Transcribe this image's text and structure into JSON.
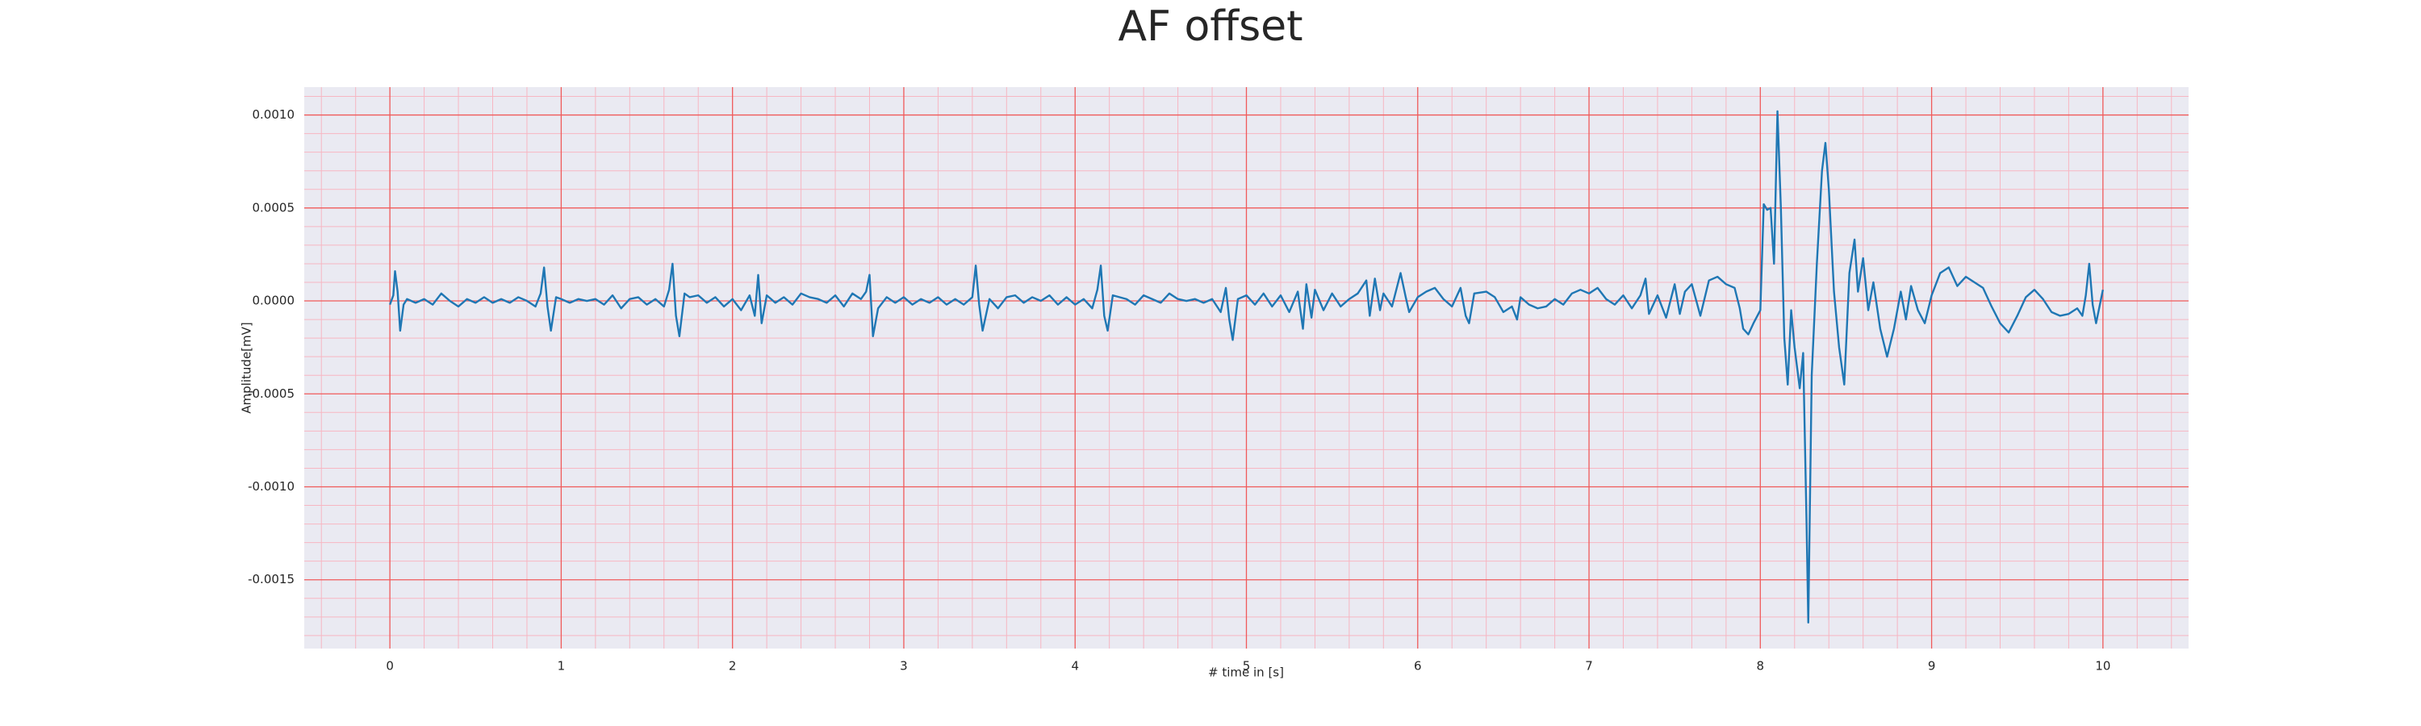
{
  "chart_data": {
    "type": "line",
    "title": "AF offset",
    "x_label": "# time in [s]",
    "y_label": "Amplitude[mV]",
    "color": "#1f77b4",
    "grid": true,
    "minor_grid": true,
    "xlim": [
      -0.5,
      10.5
    ],
    "ylim": [
      -0.00187,
      0.00115
    ],
    "xticks": [
      0,
      1,
      2,
      3,
      4,
      5,
      6,
      7,
      8,
      9,
      10
    ],
    "yticks": [
      {
        "value": -0.0015,
        "label": "-0.0015"
      },
      {
        "value": -0.001,
        "label": "-0.0010"
      },
      {
        "value": -0.0005,
        "label": "-0.0005"
      },
      {
        "value": 0,
        "label": "0.0000"
      },
      {
        "value": 0.0005,
        "label": "0.0005"
      },
      {
        "value": 0.001,
        "label": "0.0010"
      }
    ],
    "x": [
      0,
      0.02,
      0.03,
      0.045,
      0.06,
      0.08,
      0.1,
      0.15,
      0.2,
      0.25,
      0.3,
      0.35,
      0.4,
      0.45,
      0.5,
      0.55,
      0.6,
      0.65,
      0.7,
      0.75,
      0.8,
      0.85,
      0.88,
      0.9,
      0.92,
      0.94,
      0.97,
      1.0,
      1.05,
      1.1,
      1.15,
      1.2,
      1.25,
      1.3,
      1.35,
      1.4,
      1.45,
      1.5,
      1.55,
      1.6,
      1.63,
      1.65,
      1.67,
      1.69,
      1.72,
      1.75,
      1.8,
      1.85,
      1.9,
      1.95,
      2.0,
      2.05,
      2.1,
      2.13,
      2.15,
      2.17,
      2.2,
      2.25,
      2.3,
      2.35,
      2.4,
      2.45,
      2.5,
      2.55,
      2.6,
      2.65,
      2.7,
      2.75,
      2.78,
      2.8,
      2.82,
      2.85,
      2.9,
      2.95,
      3.0,
      3.05,
      3.1,
      3.15,
      3.2,
      3.25,
      3.3,
      3.35,
      3.4,
      3.42,
      3.44,
      3.46,
      3.5,
      3.55,
      3.6,
      3.65,
      3.7,
      3.75,
      3.8,
      3.85,
      3.9,
      3.95,
      4.0,
      4.05,
      4.1,
      4.13,
      4.15,
      4.17,
      4.19,
      4.22,
      4.3,
      4.35,
      4.4,
      4.45,
      4.5,
      4.55,
      4.6,
      4.65,
      4.7,
      4.75,
      4.8,
      4.85,
      4.88,
      4.9,
      4.92,
      4.95,
      5.0,
      5.05,
      5.1,
      5.15,
      5.2,
      5.25,
      5.3,
      5.33,
      5.35,
      5.38,
      5.4,
      5.45,
      5.5,
      5.55,
      5.6,
      5.65,
      5.7,
      5.72,
      5.75,
      5.78,
      5.8,
      5.85,
      5.9,
      5.93,
      5.95,
      6.0,
      6.05,
      6.1,
      6.15,
      6.2,
      6.25,
      6.28,
      6.3,
      6.33,
      6.4,
      6.45,
      6.5,
      6.55,
      6.58,
      6.6,
      6.65,
      6.7,
      6.75,
      6.8,
      6.85,
      6.9,
      6.95,
      7.0,
      7.05,
      7.1,
      7.15,
      7.2,
      7.25,
      7.3,
      7.33,
      7.35,
      7.4,
      7.45,
      7.5,
      7.53,
      7.56,
      7.6,
      7.65,
      7.7,
      7.75,
      7.8,
      7.85,
      7.88,
      7.9,
      7.93,
      7.96,
      8.0,
      8.02,
      8.04,
      8.06,
      8.08,
      8.1,
      8.12,
      8.14,
      8.16,
      8.18,
      8.2,
      8.23,
      8.25,
      8.27,
      8.28,
      8.3,
      8.33,
      8.36,
      8.38,
      8.4,
      8.43,
      8.46,
      8.49,
      8.52,
      8.55,
      8.57,
      8.6,
      8.63,
      8.66,
      8.7,
      8.74,
      8.78,
      8.82,
      8.85,
      8.88,
      8.92,
      8.96,
      9.0,
      9.05,
      9.1,
      9.15,
      9.2,
      9.25,
      9.3,
      9.35,
      9.4,
      9.45,
      9.5,
      9.55,
      9.6,
      9.65,
      9.7,
      9.75,
      9.8,
      9.85,
      9.88,
      9.9,
      9.92,
      9.94,
      9.96,
      10.0
    ],
    "values": [
      -2e-05,
      3e-05,
      0.00016,
      5e-05,
      -0.00016,
      -2e-05,
      1e-05,
      -1e-05,
      1e-05,
      -2e-05,
      4e-05,
      0,
      -3e-05,
      1e-05,
      -1e-05,
      2e-05,
      -1e-05,
      1e-05,
      -1e-05,
      2e-05,
      0,
      -3e-05,
      4e-05,
      0.00018,
      -3e-05,
      -0.00016,
      2e-05,
      1e-05,
      -1e-05,
      1e-05,
      0,
      1e-05,
      -2e-05,
      3e-05,
      -4e-05,
      1e-05,
      2e-05,
      -2e-05,
      1e-05,
      -3e-05,
      6e-05,
      0.0002,
      -8e-05,
      -0.00019,
      4e-05,
      2e-05,
      3e-05,
      -1e-05,
      2e-05,
      -3e-05,
      1e-05,
      -5e-05,
      3e-05,
      -8e-05,
      0.00014,
      -0.00012,
      3e-05,
      -1e-05,
      2e-05,
      -2e-05,
      4e-05,
      2e-05,
      1e-05,
      -1e-05,
      3e-05,
      -3e-05,
      4e-05,
      1e-05,
      5e-05,
      0.00014,
      -0.00019,
      -4e-05,
      2e-05,
      -1e-05,
      2e-05,
      -2e-05,
      1e-05,
      -1e-05,
      2e-05,
      -2e-05,
      1e-05,
      -2e-05,
      2e-05,
      0.00019,
      -2e-05,
      -0.00016,
      1e-05,
      -4e-05,
      2e-05,
      3e-05,
      -1e-05,
      2e-05,
      0,
      3e-05,
      -2e-05,
      2e-05,
      -2e-05,
      1e-05,
      -4e-05,
      6e-05,
      0.00019,
      -8e-05,
      -0.00016,
      3e-05,
      1e-05,
      -2e-05,
      3e-05,
      1e-05,
      -1e-05,
      4e-05,
      1e-05,
      0,
      1e-05,
      -1e-05,
      1e-05,
      -6e-05,
      7e-05,
      -0.0001,
      -0.00021,
      1e-05,
      3e-05,
      -2e-05,
      4e-05,
      -3e-05,
      3e-05,
      -6e-05,
      5e-05,
      -0.00015,
      9e-05,
      -9e-05,
      6e-05,
      -5e-05,
      4e-05,
      -3e-05,
      1e-05,
      4e-05,
      0.00011,
      -8e-05,
      0.00012,
      -5e-05,
      4e-05,
      -3e-05,
      0.00015,
      2e-05,
      -6e-05,
      2e-05,
      5e-05,
      7e-05,
      1e-05,
      -3e-05,
      7e-05,
      -8e-05,
      -0.00012,
      4e-05,
      5e-05,
      2e-05,
      -6e-05,
      -3e-05,
      -0.0001,
      2e-05,
      -2e-05,
      -4e-05,
      -3e-05,
      1e-05,
      -2e-05,
      4e-05,
      6e-05,
      4e-05,
      7e-05,
      1e-05,
      -2e-05,
      3e-05,
      -4e-05,
      3e-05,
      0.00012,
      -7e-05,
      3e-05,
      -9e-05,
      9e-05,
      -7e-05,
      5e-05,
      9e-05,
      -8e-05,
      0.00011,
      0.00013,
      9e-05,
      7e-05,
      -4e-05,
      -0.00015,
      -0.00018,
      -0.00012,
      -5e-05,
      0.00052,
      0.00049,
      0.0005,
      0.0002,
      0.00102,
      0.0005,
      -0.0002,
      -0.00045,
      -5e-05,
      -0.00025,
      -0.00047,
      -0.00028,
      -0.0012,
      -0.00173,
      -0.0004,
      0.0002,
      0.0007,
      0.00085,
      0.0006,
      5e-05,
      -0.00025,
      -0.00045,
      0.00015,
      0.00033,
      5e-05,
      0.00023,
      -5e-05,
      0.0001,
      -0.00015,
      -0.0003,
      -0.00015,
      5e-05,
      -0.0001,
      8e-05,
      -5e-05,
      -0.00012,
      3e-05,
      0.00015,
      0.00018,
      8e-05,
      0.00013,
      0.0001,
      7e-05,
      -3e-05,
      -0.00012,
      -0.00017,
      -8e-05,
      2e-05,
      6e-05,
      1e-05,
      -6e-05,
      -8e-05,
      -7e-05,
      -4e-05,
      -8e-05,
      3e-05,
      0.0002,
      -2e-05,
      -0.00012,
      6e-05
    ]
  }
}
